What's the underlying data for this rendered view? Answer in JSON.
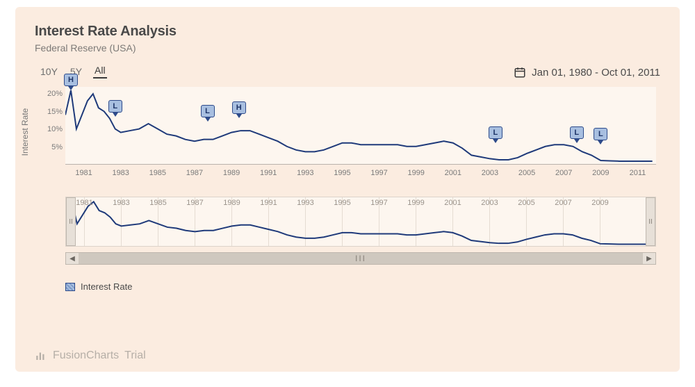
{
  "header": {
    "title": "Interest Rate Analysis",
    "subtitle": "Federal Reserve (USA)"
  },
  "controls": {
    "ranges": [
      "10Y",
      "5Y",
      "All"
    ],
    "active_range_index": 2,
    "date_range_label": "Jan 01, 1980 - Oct 01, 2011"
  },
  "chart": {
    "type": "line",
    "y_axis": {
      "label": "Interest Rate",
      "ticks": [
        5,
        10,
        15,
        20
      ],
      "tick_suffix": "%",
      "min": 0,
      "max": 22
    },
    "x_axis": {
      "min_year": 1980,
      "max_year": 2012,
      "ticks": [
        1981,
        1983,
        1985,
        1987,
        1989,
        1991,
        1993,
        1995,
        1997,
        1999,
        2001,
        2003,
        2005,
        2007,
        2009,
        2011
      ]
    },
    "style": {
      "line_color": "#1f3a7a",
      "line_width": 2,
      "plot_bg": "#fdf6ef",
      "panel_bg": "#fbece0",
      "grid_color": "#e5dcd2",
      "axis_color": "#b9b2ac",
      "tick_font_size": 11,
      "tick_color": "#7a7a7a",
      "marker_fill": "#a8bfe0",
      "marker_border": "#2d4a8a",
      "marker_text_color": "#1d3366"
    },
    "series": {
      "name": "Interest Rate",
      "years": [
        1980.0,
        1980.3,
        1980.6,
        1980.9,
        1981.2,
        1981.5,
        1981.8,
        1982.1,
        1982.4,
        1982.7,
        1983.0,
        1983.5,
        1984.0,
        1984.5,
        1985.0,
        1985.5,
        1986.0,
        1986.5,
        1987.0,
        1987.5,
        1988.0,
        1988.5,
        1989.0,
        1989.5,
        1990.0,
        1990.5,
        1991.0,
        1991.5,
        1992.0,
        1992.5,
        1993.0,
        1993.5,
        1994.0,
        1994.5,
        1995.0,
        1995.5,
        1996.0,
        1996.5,
        1997.0,
        1997.5,
        1998.0,
        1998.5,
        1999.0,
        1999.5,
        2000.0,
        2000.5,
        2001.0,
        2001.5,
        2002.0,
        2002.5,
        2003.0,
        2003.5,
        2004.0,
        2004.5,
        2005.0,
        2005.5,
        2006.0,
        2006.5,
        2007.0,
        2007.5,
        2008.0,
        2008.5,
        2009.0,
        2009.5,
        2010.0,
        2010.5,
        2011.0,
        2011.5,
        2011.8
      ],
      "values": [
        14.0,
        21.0,
        10.0,
        14.0,
        18.0,
        20.0,
        16.0,
        15.0,
        13.0,
        10.0,
        9.0,
        9.5,
        10.0,
        11.5,
        10.0,
        8.5,
        8.0,
        7.0,
        6.5,
        7.0,
        7.0,
        8.0,
        9.0,
        9.5,
        9.5,
        8.5,
        7.5,
        6.5,
        5.0,
        4.0,
        3.5,
        3.5,
        4.0,
        5.0,
        6.0,
        6.0,
        5.5,
        5.5,
        5.5,
        5.5,
        5.5,
        5.0,
        5.0,
        5.5,
        6.0,
        6.5,
        6.0,
        4.5,
        2.5,
        2.0,
        1.5,
        1.2,
        1.2,
        1.8,
        3.0,
        4.0,
        5.0,
        5.5,
        5.5,
        5.0,
        3.5,
        2.5,
        1.0,
        0.9,
        0.8,
        0.8,
        0.8,
        0.8,
        0.8
      ]
    },
    "markers": [
      {
        "label": "H",
        "year": 1980.3,
        "value": 21.0
      },
      {
        "label": "L",
        "year": 1982.7,
        "value": 13.5
      },
      {
        "label": "L",
        "year": 1987.7,
        "value": 12.0
      },
      {
        "label": "H",
        "year": 1989.4,
        "value": 13.0
      },
      {
        "label": "L",
        "year": 2003.3,
        "value": 6.0
      },
      {
        "label": "L",
        "year": 2007.7,
        "value": 6.0
      },
      {
        "label": "L",
        "year": 2009.0,
        "value": 5.5
      }
    ]
  },
  "navigator": {
    "x_ticks": [
      1981,
      1983,
      1985,
      1987,
      1989,
      1991,
      1993,
      1995,
      1997,
      1999,
      2001,
      2003,
      2005,
      2007,
      2009
    ],
    "handle_glyph": "II",
    "scrollbar": {
      "left_arrow": "◀",
      "right_arrow": "▶",
      "grip": "III"
    },
    "style": {
      "bg": "#fdf6ef",
      "border": "#dcd3ca",
      "handle_bg": "#e7e0d8",
      "track_bg": "#cfc8bf"
    }
  },
  "legend": {
    "label": "Interest Rate"
  },
  "watermark": {
    "brand": "FusionCharts",
    "suffix": "Trial"
  }
}
